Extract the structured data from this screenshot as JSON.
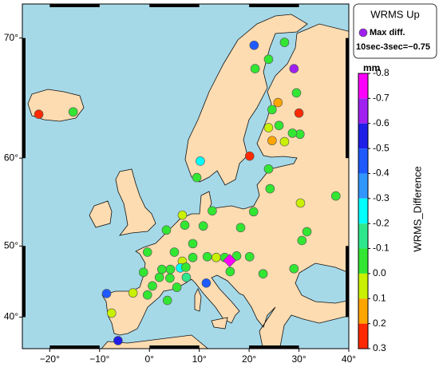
{
  "map": {
    "xlim": [
      -25.5,
      40
    ],
    "ylim": [
      35,
      72.2
    ],
    "xticks": [
      {
        "value": -20,
        "label": "−20°"
      },
      {
        "value": -10,
        "label": "−10°"
      },
      {
        "value": 0,
        "label": "0°"
      },
      {
        "value": 10,
        "label": "10°"
      },
      {
        "value": 20,
        "label": "20°"
      },
      {
        "value": 30,
        "label": "30°"
      },
      {
        "value": 40,
        "label": "40°"
      }
    ],
    "yticks": [
      {
        "value": 40,
        "label": "40°"
      },
      {
        "value": 50,
        "label": "50°"
      },
      {
        "value": 60,
        "label": "60°"
      },
      {
        "value": 70,
        "label": "70°"
      }
    ],
    "stations": [
      {
        "lon": -22.2,
        "lat": 64.1,
        "value": 0.25
      },
      {
        "lon": -15.3,
        "lat": 64.3,
        "value": -0.05
      },
      {
        "lon": 21.0,
        "lat": 69.5,
        "value": -0.45
      },
      {
        "lon": 27.1,
        "lat": 69.7,
        "value": -0.05
      },
      {
        "lon": 23.9,
        "lat": 68.5,
        "value": -0.05
      },
      {
        "lon": 21.2,
        "lat": 67.8,
        "value": -0.05
      },
      {
        "lon": 29.0,
        "lat": 67.8,
        "value": -0.65
      },
      {
        "lon": 29.5,
        "lat": 65.9,
        "value": -0.05
      },
      {
        "lon": 25.8,
        "lat": 65.1,
        "value": 0.15
      },
      {
        "lon": 24.6,
        "lat": 64.5,
        "value": -0.05
      },
      {
        "lon": 30.0,
        "lat": 64.2,
        "value": 0.25
      },
      {
        "lon": 26.0,
        "lat": 63.1,
        "value": -0.05
      },
      {
        "lon": 30.2,
        "lat": 62.3,
        "value": -0.05
      },
      {
        "lon": 23.9,
        "lat": 62.9,
        "value": 0.05
      },
      {
        "lon": 24.6,
        "lat": 61.7,
        "value": 0.15
      },
      {
        "lon": 27.1,
        "lat": 61.6,
        "value": 0.05
      },
      {
        "lon": 28.7,
        "lat": 62.4,
        "value": -0.05
      },
      {
        "lon": 20.1,
        "lat": 60.2,
        "value": 0.25
      },
      {
        "lon": 10.2,
        "lat": 59.7,
        "value": -0.25
      },
      {
        "lon": 9.5,
        "lat": 58.0,
        "value": -0.05
      },
      {
        "lon": 23.9,
        "lat": 58.9,
        "value": -0.05
      },
      {
        "lon": 24.2,
        "lat": 56.8,
        "value": -0.05
      },
      {
        "lon": 30.3,
        "lat": 55.2,
        "value": 0.05
      },
      {
        "lon": 37.4,
        "lat": 56.0,
        "value": -0.05
      },
      {
        "lon": 20.9,
        "lat": 54.2,
        "value": -0.05
      },
      {
        "lon": 31.6,
        "lat": 51.8,
        "value": -0.05
      },
      {
        "lon": 30.6,
        "lat": 50.7,
        "value": -0.05
      },
      {
        "lon": 29.0,
        "lat": 47.0,
        "value": -0.05
      },
      {
        "lon": 18.3,
        "lat": 52.3,
        "value": -0.05
      },
      {
        "lon": 12.6,
        "lat": 54.3,
        "value": -0.05
      },
      {
        "lon": 6.6,
        "lat": 53.8,
        "value": 0.05
      },
      {
        "lon": 7.1,
        "lat": 52.6,
        "value": -0.05
      },
      {
        "lon": 10.8,
        "lat": 52.5,
        "value": -0.05
      },
      {
        "lon": 3.4,
        "lat": 52.0,
        "value": -0.05
      },
      {
        "lon": 8.7,
        "lat": 50.3,
        "value": -0.05
      },
      {
        "lon": -0.4,
        "lat": 49.2,
        "value": -0.05
      },
      {
        "lon": 5.0,
        "lat": 49.2,
        "value": -0.05
      },
      {
        "lon": 8.7,
        "lat": 48.5,
        "value": -0.05
      },
      {
        "lon": 6.6,
        "lat": 48.0,
        "value": 0.05
      },
      {
        "lon": 6.2,
        "lat": 47.1,
        "value": -0.25
      },
      {
        "lon": 4.2,
        "lat": 46.9,
        "value": -0.05
      },
      {
        "lon": 2.5,
        "lat": 46.9,
        "value": -0.05
      },
      {
        "lon": 7.3,
        "lat": 47.2,
        "value": -0.05
      },
      {
        "lon": 11.6,
        "lat": 48.6,
        "value": -0.05
      },
      {
        "lon": 13.4,
        "lat": 48.5,
        "value": 0.05
      },
      {
        "lon": 15.1,
        "lat": 48.5,
        "value": -0.05
      },
      {
        "lon": 17.5,
        "lat": 48.7,
        "value": -0.05
      },
      {
        "lon": 20.1,
        "lat": 48.6,
        "value": -0.05
      },
      {
        "lon": 16.2,
        "lat": 46.6,
        "value": -0.05
      },
      {
        "lon": 22.8,
        "lat": 46.3,
        "value": -0.05
      },
      {
        "lon": -1.2,
        "lat": 46.5,
        "value": -0.05
      },
      {
        "lon": 2.0,
        "lat": 45.8,
        "value": -0.05
      },
      {
        "lon": 4.1,
        "lat": 45.7,
        "value": -0.05
      },
      {
        "lon": 0.6,
        "lat": 44.6,
        "value": -0.05
      },
      {
        "lon": 7.4,
        "lat": 45.8,
        "value": -0.15
      },
      {
        "lon": 5.5,
        "lat": 44.4,
        "value": -0.05
      },
      {
        "lon": 3.6,
        "lat": 42.5,
        "value": -0.05
      },
      {
        "lon": 11.4,
        "lat": 45.0,
        "value": -0.45
      },
      {
        "lon": -0.4,
        "lat": 43.3,
        "value": -0.05
      },
      {
        "lon": -3.3,
        "lat": 43.6,
        "value": 0.05
      },
      {
        "lon": -8.6,
        "lat": 43.5,
        "value": -0.45
      },
      {
        "lon": -7.6,
        "lat": 40.6,
        "value": 0.05
      },
      {
        "lon": -6.3,
        "lat": 36.3,
        "value": -0.55
      },
      {
        "lon": 16.1,
        "lat": 48.1,
        "value": -0.75,
        "marker": "diamond"
      }
    ]
  },
  "legend": {
    "title": "WRMS Up",
    "marker_label": "Max diff.",
    "marker_color": "#a020f0",
    "max_text": "10sec-3sec=−0.75"
  },
  "colorbar": {
    "unit": "mm",
    "label": "WRMS_Difference",
    "ticks": [
      -0.8,
      -0.7,
      -0.6,
      -0.5,
      -0.4,
      -0.3,
      -0.2,
      -0.1,
      {
        "value": 0,
        "label": "0.0"
      },
      0.1,
      0.2,
      0.3
    ],
    "colors": [
      "#ff00ff",
      "#a020f0",
      "#1e1ee6",
      "#1e5aff",
      "#3296ff",
      "#00ffff",
      "#2ee68c",
      "#32e632",
      "#c8f000",
      "#ffa500",
      "#ff2a00"
    ]
  }
}
